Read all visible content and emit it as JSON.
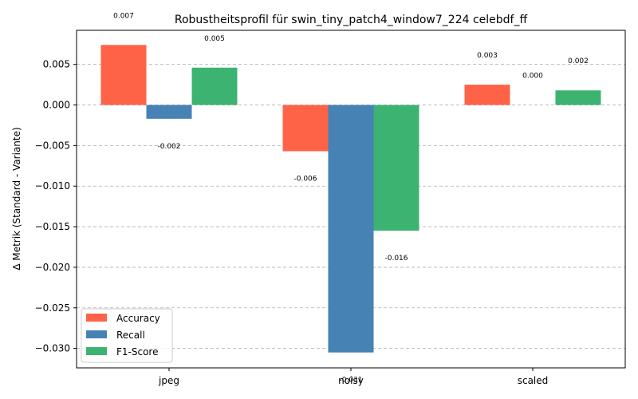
{
  "chart_data": {
    "type": "bar",
    "title": "Robustheitsprofil für swin_tiny_patch4_window7_224 celebdf_ff",
    "xlabel": "",
    "ylabel": "Δ Metrik (Standard - Variante)",
    "categories": [
      "jpeg",
      "noisy",
      "scaled"
    ],
    "series": [
      {
        "name": "Accuracy",
        "color": "#ff6347",
        "values": [
          0.0074,
          -0.0057,
          0.0025
        ],
        "labels": [
          "0.007",
          "-0.006",
          "0.003"
        ]
      },
      {
        "name": "Recall",
        "color": "#4682b4",
        "values": [
          -0.0017,
          -0.0305,
          0.0
        ],
        "labels": [
          "-0.002",
          "-0.031",
          "0.000"
        ]
      },
      {
        "name": "F1-Score",
        "color": "#3cb371",
        "values": [
          0.0046,
          -0.0155,
          0.0018
        ],
        "labels": [
          "0.005",
          "-0.016",
          "0.002"
        ]
      }
    ],
    "yticks": [
      "0.005",
      "0.000",
      "−0.005",
      "−0.010",
      "−0.015",
      "−0.020",
      "−0.025",
      "−0.030"
    ],
    "ytick_values": [
      0.005,
      0.0,
      -0.005,
      -0.01,
      -0.015,
      -0.02,
      -0.025,
      -0.03
    ],
    "ylim": [
      -0.0324,
      0.0092
    ],
    "grid": "y-dashed",
    "legend_position": "lower-left"
  }
}
